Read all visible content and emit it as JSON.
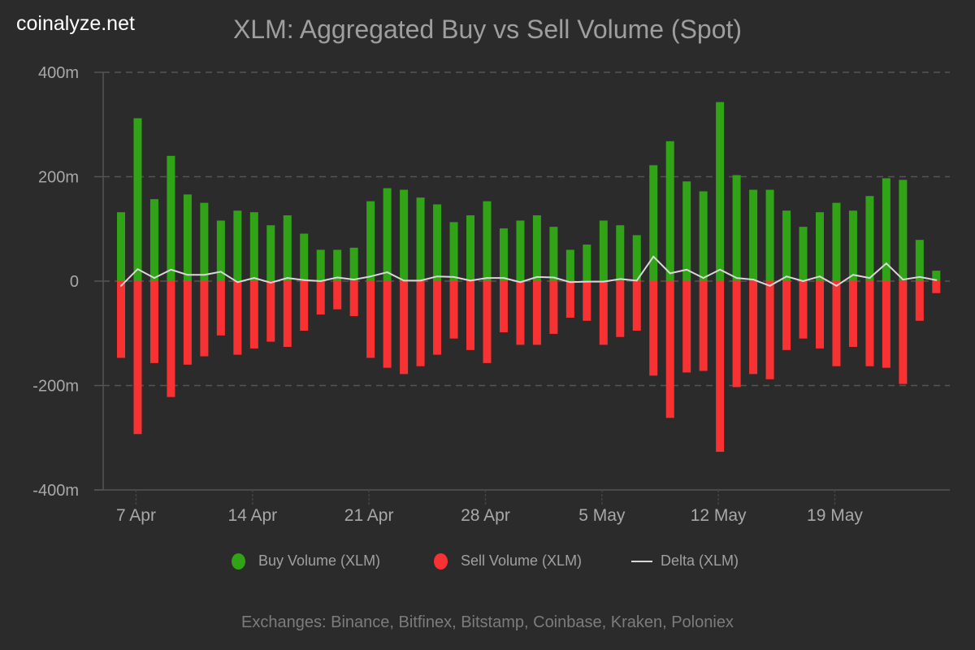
{
  "brand": "coinalyze.net",
  "chart_data": {
    "type": "bar",
    "title": "XLM: Aggregated Buy vs Sell Volume (Spot)",
    "xlabel": "",
    "ylabel": "",
    "ylim": [
      -400,
      400
    ],
    "y_unit": "m",
    "yticks": [
      {
        "value": 400,
        "label": "400m"
      },
      {
        "value": 200,
        "label": "200m"
      },
      {
        "value": 0,
        "label": "0"
      },
      {
        "value": -200,
        "label": "-200m"
      },
      {
        "value": -400,
        "label": "-400m"
      }
    ],
    "xticks": [
      {
        "index": 1,
        "label": "7 Apr"
      },
      {
        "index": 8,
        "label": "14 Apr"
      },
      {
        "index": 15,
        "label": "21 Apr"
      },
      {
        "index": 22,
        "label": "28 Apr"
      },
      {
        "index": 29,
        "label": "5 May"
      },
      {
        "index": 36,
        "label": "12 May"
      },
      {
        "index": 43,
        "label": "19 May"
      }
    ],
    "grid": true,
    "legend_position": "bottom",
    "x_start": "6 Apr",
    "series": [
      {
        "name": "Buy Volume (XLM)",
        "type": "bar",
        "color": "#31a316",
        "values": [
          132,
          312,
          157,
          240,
          166,
          150,
          116,
          135,
          132,
          107,
          126,
          91,
          60,
          60,
          64,
          153,
          178,
          175,
          160,
          147,
          113,
          126,
          153,
          101,
          116,
          126,
          104,
          60,
          70,
          116,
          107,
          88,
          222,
          268,
          191,
          172,
          343,
          203,
          175,
          175,
          135,
          104,
          132,
          150,
          135,
          163,
          197,
          194,
          79,
          20
        ]
      },
      {
        "name": "Sell Volume (XLM)",
        "type": "bar",
        "color": "#f83232",
        "values": [
          -147,
          -293,
          -157,
          -222,
          -160,
          -144,
          -104,
          -141,
          -129,
          -116,
          -126,
          -95,
          -64,
          -54,
          -67,
          -147,
          -166,
          -178,
          -163,
          -141,
          -110,
          -132,
          -157,
          -98,
          -122,
          -122,
          -101,
          -70,
          -76,
          -122,
          -107,
          -95,
          -181,
          -262,
          -175,
          -172,
          -327,
          -203,
          -178,
          -188,
          -132,
          -110,
          -129,
          -163,
          -126,
          -163,
          -166,
          -197,
          -76,
          -23
        ]
      },
      {
        "name": "Delta (XLM)",
        "type": "line",
        "color": "#d8d8d8",
        "values": [
          -9,
          23,
          6,
          22,
          12,
          12,
          18,
          -2,
          6,
          -3,
          6,
          2,
          0,
          7,
          3,
          9,
          17,
          1,
          1,
          9,
          8,
          1,
          6,
          6,
          -2,
          8,
          7,
          -2,
          -1,
          -1,
          4,
          1,
          47,
          15,
          22,
          6,
          22,
          6,
          3,
          -9,
          9,
          0,
          9,
          -9,
          12,
          6,
          34,
          3,
          8,
          2
        ]
      }
    ]
  },
  "footer": "Exchanges: Binance, Bitfinex, Bitstamp, Coinbase, Kraken, Poloniex"
}
